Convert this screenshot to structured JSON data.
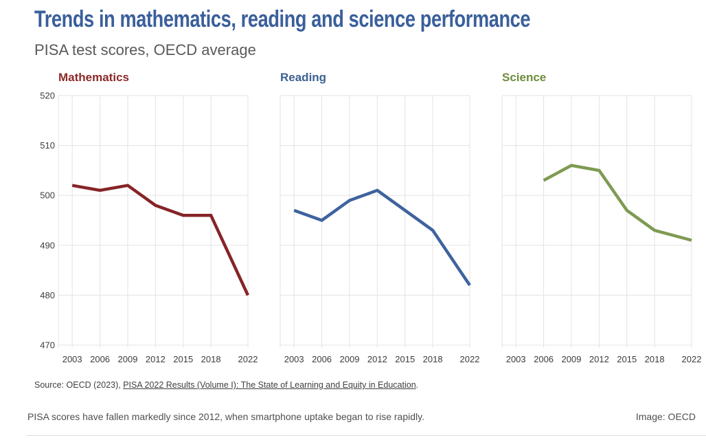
{
  "header": {
    "title": "Trends in mathematics, reading and science performance",
    "subtitle": "PISA test scores, OECD average"
  },
  "chart_data": {
    "type": "line",
    "title": "Trends in mathematics, reading and science performance",
    "subtitle": "PISA test scores, OECD average",
    "x_ticks": [
      "2003",
      "2006",
      "2009",
      "2012",
      "2015",
      "2018",
      "2022"
    ],
    "x_domain": [
      2001.5,
      2022
    ],
    "y_ticks": [
      470,
      480,
      490,
      500,
      510,
      520
    ],
    "ylim": [
      470,
      520
    ],
    "grid": true,
    "legend": "none (per-panel colored titles)",
    "grid_color": "#e3e3e3",
    "axis_text_color": "#3c3c3c",
    "panels": [
      {
        "title": "Mathematics",
        "title_color": "#8b2a28",
        "color": "#862427",
        "years": [
          2003,
          2006,
          2009,
          2012,
          2015,
          2018,
          2022
        ],
        "values": [
          502,
          501,
          502,
          498,
          496,
          496,
          480
        ]
      },
      {
        "title": "Reading",
        "title_color": "#3d6190",
        "color": "#3f639e",
        "years": [
          2003,
          2006,
          2009,
          2012,
          2015,
          2018,
          2022
        ],
        "values": [
          497,
          495,
          499,
          501,
          497,
          493,
          482
        ]
      },
      {
        "title": "Science",
        "title_color": "#6d8c3a",
        "color": "#7d9b52",
        "years": [
          2006,
          2009,
          2012,
          2015,
          2018,
          2022
        ],
        "values": [
          503,
          506,
          505,
          497,
          493,
          491
        ]
      }
    ]
  },
  "source": {
    "prefix": "Source: OECD (2023), ",
    "link": "PISA 2022 Results (Volume I): The State of Learning and Equity in Education",
    "suffix": "."
  },
  "footer": {
    "caption": "PISA scores have fallen markedly since 2012, when smartphone uptake began to rise rapidly.",
    "credit": "Image: OECD"
  }
}
